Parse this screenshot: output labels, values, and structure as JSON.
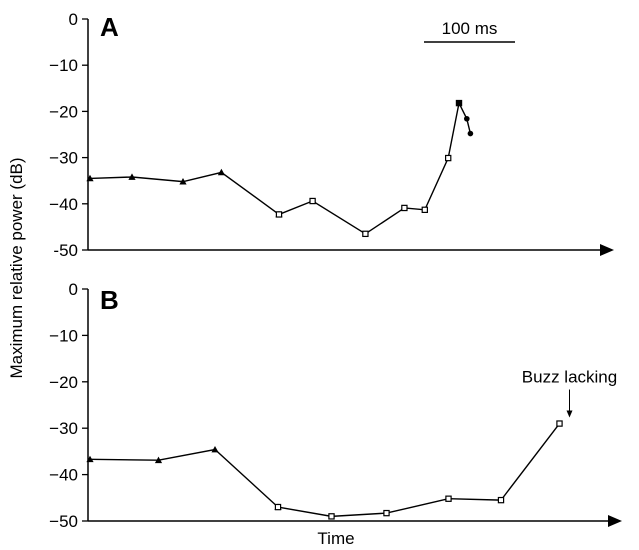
{
  "figure": {
    "ylabel": "Maximum relative power (dB)",
    "xlabel": "Time"
  },
  "chart_data": [
    {
      "type": "line",
      "panel": "A",
      "xlabel": "Time",
      "ylabel": "Maximum relative power (dB)",
      "ylim": [
        -50,
        0
      ],
      "yticks": [
        0,
        -10,
        -20,
        -30,
        -40,
        -50
      ],
      "ytick_labels": [
        "0",
        "−10",
        "−20",
        "−30",
        "−40",
        "-50"
      ],
      "scale_bar": "100 ms",
      "x_unit": "ms",
      "series": [
        {
          "marker": "triangle",
          "points": [
            [
              0,
              -34.5
            ],
            [
              70,
              -34.2
            ],
            [
              155,
              -35.2
            ],
            [
              219,
              -33.2
            ],
            [
              315,
              -42.3
            ]
          ]
        },
        {
          "marker": "open-square",
          "points": [
            [
              315,
              -42.3
            ],
            [
              371,
              -39.4
            ],
            [
              459,
              -46.5
            ],
            [
              524,
              -40.9
            ],
            [
              558,
              -41.3
            ],
            [
              597,
              -30.1
            ],
            [
              615,
              -18.2
            ]
          ]
        },
        {
          "marker": "circle",
          "points": [
            [
              615,
              -18.2
            ],
            [
              628,
              -21.6
            ],
            [
              634,
              -24.8
            ]
          ]
        }
      ]
    },
    {
      "type": "line",
      "panel": "B",
      "xlabel": "Time",
      "ylabel": "Maximum relative power (dB)",
      "ylim": [
        -50,
        0
      ],
      "yticks": [
        0,
        -10,
        -20,
        -30,
        -40,
        -50
      ],
      "ytick_labels": [
        "0",
        "−10",
        "−20",
        "−30",
        "−40",
        "−50"
      ],
      "x_unit": "ms",
      "annotation": {
        "text": "Buzz lacking",
        "at": [
          939,
          -29
        ]
      },
      "series": [
        {
          "marker": "triangle",
          "points": [
            [
              0,
              -36.7
            ],
            [
              137,
              -36.9
            ],
            [
              250,
              -34.6
            ],
            [
              376,
              -47.0
            ]
          ]
        },
        {
          "marker": "open-square",
          "points": [
            [
              376,
              -47.0
            ],
            [
              483,
              -49.0
            ],
            [
              593,
              -48.3
            ],
            [
              717,
              -45.2
            ],
            [
              822,
              -45.5
            ],
            [
              939,
              -29.0
            ]
          ]
        }
      ]
    }
  ]
}
